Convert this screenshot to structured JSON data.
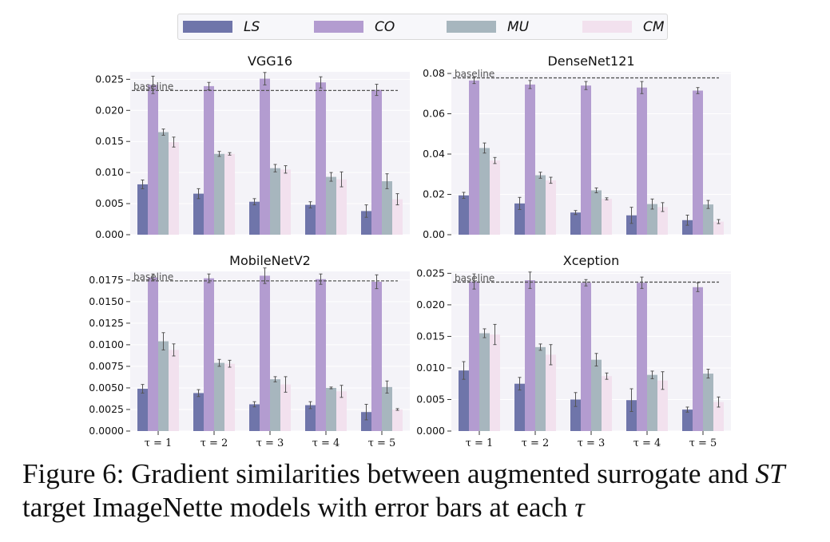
{
  "legend": [
    {
      "label": "LS",
      "color": "#6f75aa"
    },
    {
      "label": "CO",
      "color": "#b39cd0"
    },
    {
      "label": "MU",
      "color": "#a7b6be"
    },
    {
      "label": "CM",
      "color": "#f2e1ee"
    }
  ],
  "caption": {
    "part1": "Figure 6: Gradient similarities between augmented surrogate and ",
    "italic": "ST",
    "part2": " target ImageNette models with error bars at each ",
    "symbol": "τ"
  },
  "chart_data": [
    {
      "type": "bar",
      "title": "VGG16",
      "categories": [
        "τ = 1",
        "τ = 2",
        "τ = 3",
        "τ = 4",
        "τ = 5"
      ],
      "ylim": [
        0,
        0.0262
      ],
      "yticks": [
        "0.000",
        "0.005",
        "0.010",
        "0.015",
        "0.020",
        "0.025"
      ],
      "baseline": {
        "label": "baseline",
        "value": 0.0232
      },
      "series": [
        {
          "name": "LS",
          "values": [
            0.0081,
            0.0066,
            0.0053,
            0.0048,
            0.0038
          ],
          "errors": [
            0.0007,
            0.0008,
            0.0005,
            0.0005,
            0.001
          ]
        },
        {
          "name": "CO",
          "values": [
            0.0241,
            0.0239,
            0.0251,
            0.0245,
            0.0233
          ],
          "errors": [
            0.0014,
            0.0006,
            0.001,
            0.0009,
            0.0009
          ]
        },
        {
          "name": "MU",
          "values": [
            0.0165,
            0.013,
            0.0107,
            0.0093,
            0.0086
          ],
          "errors": [
            0.0005,
            0.0004,
            0.0006,
            0.0007,
            0.0012
          ]
        },
        {
          "name": "CM",
          "values": [
            0.0149,
            0.013,
            0.0105,
            0.0089,
            0.0057
          ],
          "errors": [
            0.0008,
            0.0002,
            0.0006,
            0.0012,
            0.0009
          ]
        }
      ]
    },
    {
      "type": "bar",
      "title": "DenseNet121",
      "categories": [
        "τ = 1",
        "τ = 2",
        "τ = 3",
        "τ = 4",
        "τ = 5"
      ],
      "ylim": [
        0,
        0.0808
      ],
      "yticks": [
        "0.00",
        "0.02",
        "0.04",
        "0.06",
        "0.08"
      ],
      "baseline": {
        "label": "baseline",
        "value": 0.0778
      },
      "series": [
        {
          "name": "LS",
          "values": [
            0.0195,
            0.0155,
            0.011,
            0.0096,
            0.0072
          ],
          "errors": [
            0.0015,
            0.003,
            0.001,
            0.004,
            0.0025
          ]
        },
        {
          "name": "CO",
          "values": [
            0.0765,
            0.0745,
            0.074,
            0.073,
            0.0715
          ],
          "errors": [
            0.0015,
            0.002,
            0.002,
            0.003,
            0.0015
          ]
        },
        {
          "name": "MU",
          "values": [
            0.043,
            0.0295,
            0.022,
            0.0152,
            0.015
          ],
          "errors": [
            0.0025,
            0.0015,
            0.0012,
            0.0025,
            0.002
          ]
        },
        {
          "name": "CM",
          "values": [
            0.0368,
            0.027,
            0.0178,
            0.0137,
            0.0065
          ],
          "errors": [
            0.0015,
            0.0015,
            0.0005,
            0.0022,
            0.001
          ]
        }
      ]
    },
    {
      "type": "bar",
      "title": "MobileNetV2",
      "categories": [
        "τ = 1",
        "τ = 2",
        "τ = 3",
        "τ = 4",
        "τ = 5"
      ],
      "ylim": [
        0,
        0.0185
      ],
      "yticks": [
        "0.0000",
        "0.0025",
        "0.0050",
        "0.0075",
        "0.0100",
        "0.0125",
        "0.0150",
        "0.0175"
      ],
      "baseline": {
        "label": "baseline",
        "value": 0.0174
      },
      "series": [
        {
          "name": "LS",
          "values": [
            0.0049,
            0.0044,
            0.0031,
            0.003,
            0.0022
          ],
          "errors": [
            0.0005,
            0.0004,
            0.0003,
            0.0004,
            0.0009
          ]
        },
        {
          "name": "CO",
          "values": [
            0.0178,
            0.0177,
            0.018,
            0.0176,
            0.0173
          ],
          "errors": [
            0.0004,
            0.0005,
            0.0009,
            0.0006,
            0.0008
          ]
        },
        {
          "name": "MU",
          "values": [
            0.0104,
            0.0079,
            0.006,
            0.005,
            0.0051
          ],
          "errors": [
            0.001,
            0.0004,
            0.0003,
            0.0001,
            0.0007
          ]
        },
        {
          "name": "CM",
          "values": [
            0.0094,
            0.0078,
            0.0054,
            0.0046,
            0.0025
          ],
          "errors": [
            0.0007,
            0.0004,
            0.0009,
            0.0007,
            0.0001
          ]
        }
      ]
    },
    {
      "type": "bar",
      "title": "Xception",
      "categories": [
        "τ = 1",
        "τ = 2",
        "τ = 3",
        "τ = 4",
        "τ = 5"
      ],
      "ylim": [
        0,
        0.0253
      ],
      "yticks": [
        "0.000",
        "0.005",
        "0.010",
        "0.015",
        "0.020",
        "0.025"
      ],
      "baseline": {
        "label": "baseline",
        "value": 0.0236
      },
      "series": [
        {
          "name": "LS",
          "values": [
            0.0096,
            0.0075,
            0.005,
            0.0049,
            0.0034
          ],
          "errors": [
            0.0014,
            0.001,
            0.0011,
            0.0018,
            0.0004
          ]
        },
        {
          "name": "CO",
          "values": [
            0.0237,
            0.0239,
            0.0235,
            0.0235,
            0.0228
          ],
          "errors": [
            0.0012,
            0.0013,
            0.0005,
            0.0009,
            0.0007
          ]
        },
        {
          "name": "MU",
          "values": [
            0.0155,
            0.0133,
            0.0113,
            0.0089,
            0.0091
          ],
          "errors": [
            0.0007,
            0.0005,
            0.001,
            0.0006,
            0.0007
          ]
        },
        {
          "name": "CM",
          "values": [
            0.0153,
            0.0121,
            0.0087,
            0.008,
            0.0046
          ],
          "errors": [
            0.0016,
            0.0016,
            0.0005,
            0.0014,
            0.0008
          ]
        }
      ]
    }
  ]
}
